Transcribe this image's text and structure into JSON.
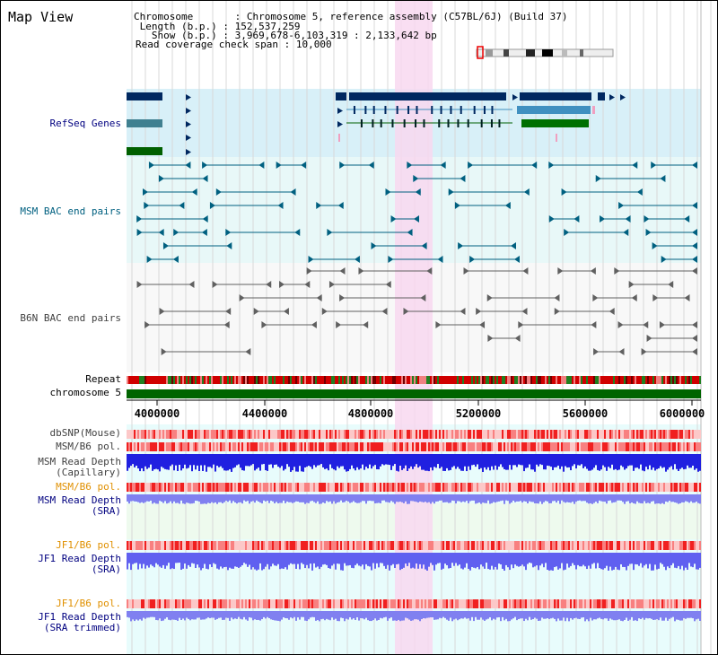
{
  "title": "Map View",
  "info": {
    "chromosome_label": "Chromosome",
    "chromosome_value": "Chromosome 5, reference assembly (C57BL/6J) (Build 37)",
    "length_label": "Length (b.p.)",
    "length_value": "152,537,259",
    "show_label": "Show (b.p.)",
    "show_value": "3,969,678-6,103,319 : 2,133,642 bp",
    "coverage_label": "Read coverage check span",
    "coverage_value": "10,000"
  },
  "tracks": {
    "refseq": "RefSeq Genes",
    "msm_bac": "MSM BAC end pairs",
    "b6n_bac": "B6N BAC end pairs",
    "repeat": "Repeat",
    "chromosome": "chromosome 5",
    "dbsnp": "dbSNP(Mouse)",
    "msm_b6_pol": "MSM/B6 pol.",
    "msm_depth_cap_1": "MSM Read Depth",
    "msm_depth_cap_2": "(Capillary)",
    "msm_b6_pol2": "MSM/B6 pol.",
    "msm_depth_sra_1": "MSM Read Depth",
    "msm_depth_sra_2": "(SRA)",
    "jf1_b6_pol": "JF1/B6 pol.",
    "jf1_depth_1": "JF1 Read Depth",
    "jf1_depth_2": "(SRA)",
    "jf1_b6_pol2": "JF1/B6 pol.",
    "jf1_trim_1": "JF1 Read Depth",
    "jf1_trim_2": "(SRA trimmed)"
  },
  "axis": {
    "ticks": [
      "4000000",
      "4400000",
      "4800000",
      "5200000",
      "5600000",
      "6000000"
    ]
  },
  "colors": {
    "highlight": "#f8d8f0",
    "refseq_bg": "#d8f0f8",
    "msm_bg": "#e8f8f8",
    "chromosome": "#006400",
    "gene_dark": "#002860",
    "gene_mid": "#4090c0",
    "bac_teal": "#006080",
    "bac_gray": "#606060"
  }
}
